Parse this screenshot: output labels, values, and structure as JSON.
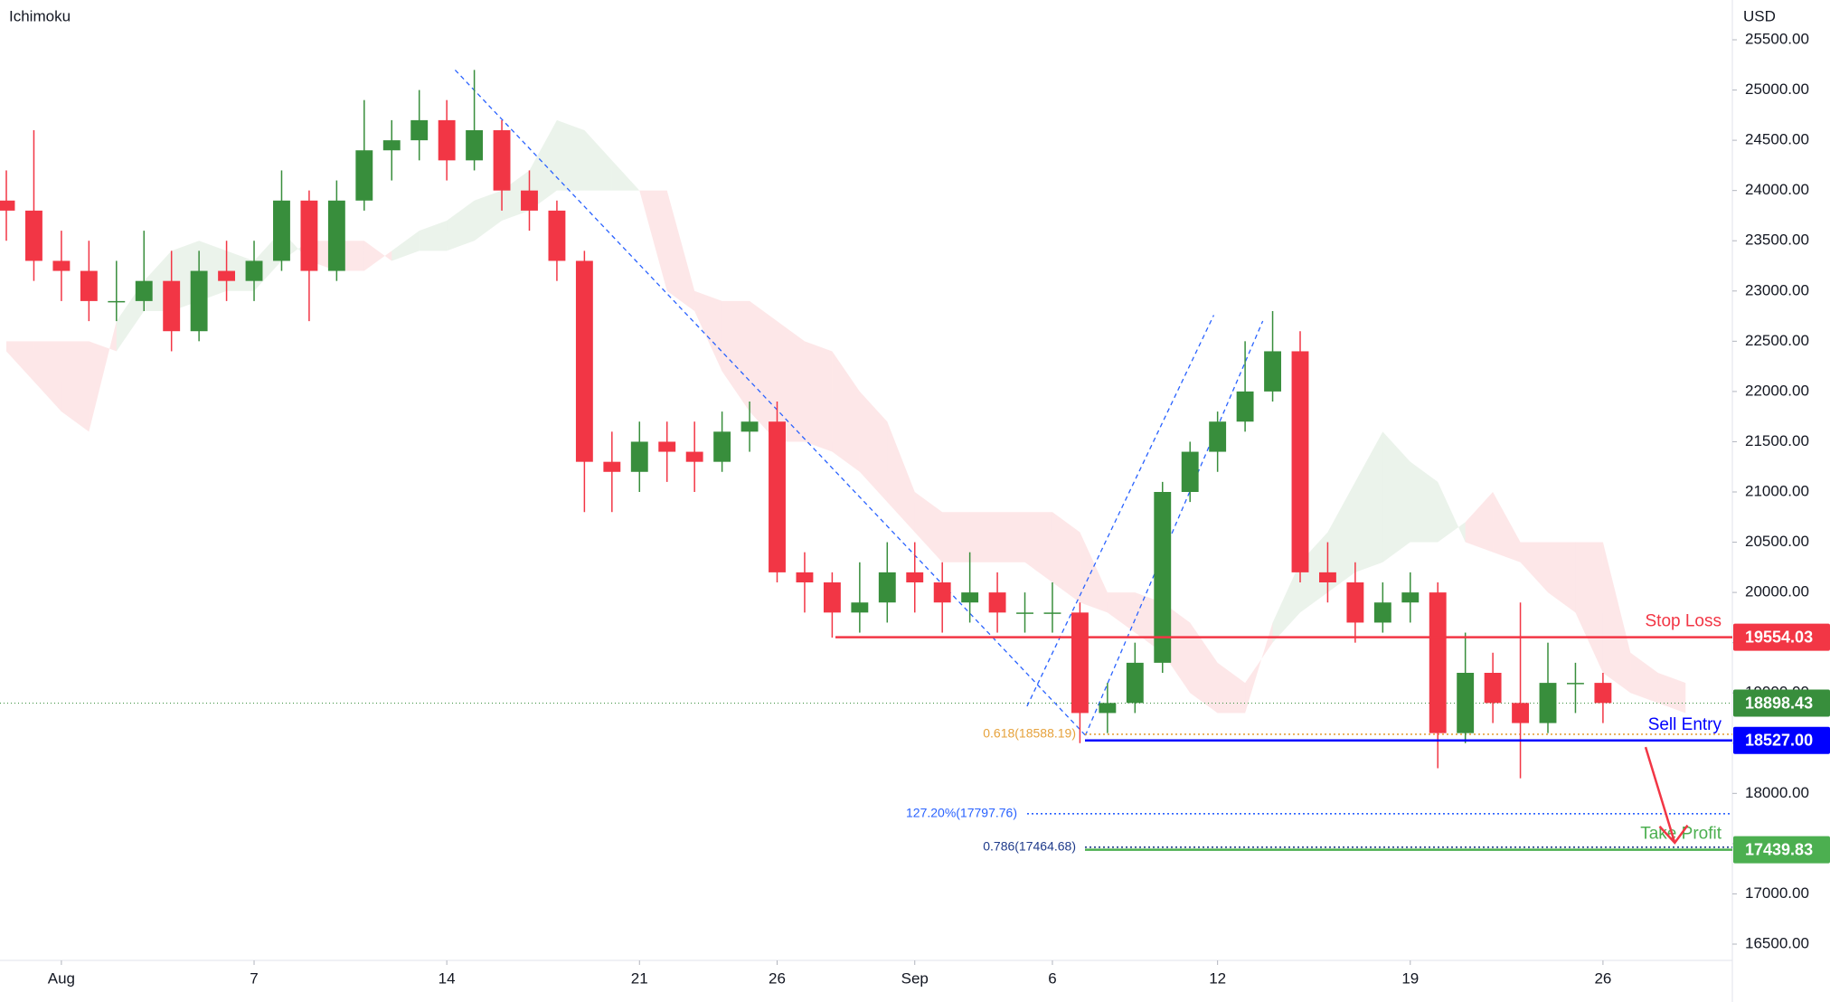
{
  "chart_data": {
    "type": "candlestick",
    "title": "Ichimoku",
    "currency": "USD",
    "x": [
      -2,
      -1,
      0,
      1,
      2,
      3,
      4,
      5,
      6,
      7,
      8,
      9,
      10,
      11,
      12,
      13,
      14,
      15,
      16,
      17,
      18,
      19,
      20,
      21,
      22,
      23,
      24,
      25,
      26,
      27,
      28,
      29,
      30,
      31,
      32,
      33,
      34,
      35,
      36,
      37,
      38,
      39,
      40,
      41,
      42,
      43,
      44,
      45,
      46,
      47,
      48,
      49,
      50,
      51,
      52,
      53,
      54,
      55,
      56
    ],
    "open": [
      23900,
      23800,
      23300,
      23200,
      22900,
      22900,
      23100,
      22600,
      23200,
      23100,
      23300,
      23900,
      23200,
      23900,
      24400,
      24500,
      24700,
      24300,
      24600,
      24000,
      23800,
      23300,
      21300,
      21200,
      21500,
      21400,
      21300,
      21600,
      21700,
      20200,
      20100,
      19800,
      19900,
      20200,
      20100,
      19900,
      20000,
      19800,
      19800,
      19800,
      18800,
      18900,
      19300,
      21000,
      21400,
      21700,
      22000,
      22400,
      20200,
      20100,
      19700,
      19900,
      20000,
      18600,
      19200,
      18900,
      18700,
      19100,
      19100
    ],
    "high": [
      24200,
      24600,
      23600,
      23500,
      23300,
      23600,
      23400,
      23400,
      23500,
      23500,
      24200,
      24000,
      24100,
      24900,
      24700,
      25000,
      24900,
      25200,
      24700,
      24200,
      23900,
      23400,
      21600,
      21700,
      21700,
      21700,
      21800,
      21900,
      21900,
      20400,
      20200,
      20300,
      20500,
      20500,
      20300,
      20400,
      20200,
      20000,
      20100,
      19900,
      19100,
      19500,
      21100,
      21500,
      21800,
      22500,
      22800,
      22600,
      20500,
      20300,
      20100,
      20200,
      20100,
      19600,
      19400,
      19900,
      19500,
      19300,
      19200
    ],
    "low": [
      23500,
      23100,
      22900,
      22700,
      22700,
      22800,
      22400,
      22500,
      22900,
      22900,
      23200,
      22700,
      23100,
      23800,
      24100,
      24300,
      24100,
      24200,
      23800,
      23600,
      23100,
      20800,
      20800,
      21000,
      21100,
      21000,
      21200,
      21400,
      20100,
      19800,
      19550,
      19600,
      19700,
      19800,
      19600,
      19700,
      19600,
      19600,
      19600,
      18500,
      18600,
      18800,
      19200,
      20900,
      21200,
      21600,
      21900,
      20100,
      19900,
      19500,
      19600,
      19700,
      18250,
      18500,
      18700,
      18150,
      18600,
      18800,
      18700
    ],
    "close": [
      23800,
      23300,
      23200,
      22900,
      22900,
      23100,
      22600,
      23200,
      23100,
      23300,
      23900,
      23200,
      23900,
      24400,
      24500,
      24700,
      24300,
      24600,
      24000,
      23800,
      23300,
      21300,
      21200,
      21500,
      21400,
      21300,
      21600,
      21700,
      20200,
      20100,
      19800,
      19900,
      20200,
      20100,
      19900,
      20000,
      19800,
      19800,
      19800,
      18800,
      18900,
      19300,
      21000,
      21400,
      21700,
      22000,
      22400,
      20200,
      20100,
      19700,
      19900,
      20000,
      18600,
      19200,
      18900,
      18700,
      19100,
      19100,
      18900
    ],
    "up_color": "#388e3c",
    "down_color": "#f23645",
    "cloud": {
      "x": [
        -2,
        -1,
        0,
        1,
        2,
        3,
        4,
        5,
        6,
        7,
        8,
        9,
        10,
        11,
        12,
        13,
        14,
        15,
        16,
        17,
        18,
        19,
        20,
        21,
        22,
        23,
        24,
        25,
        26,
        27,
        28,
        29,
        30,
        31,
        32,
        33,
        34,
        35,
        36,
        37,
        38,
        39,
        40,
        41,
        42,
        43,
        44,
        45,
        46,
        47,
        48,
        49,
        50,
        51,
        52,
        53,
        54,
        55,
        56,
        57,
        58,
        59
      ],
      "span_a": [
        22400,
        22100,
        21800,
        21600,
        22700,
        23100,
        23400,
        23500,
        23400,
        23300,
        23600,
        23300,
        23200,
        23200,
        23400,
        23600,
        23700,
        23900,
        24000,
        24200,
        24700,
        24600,
        24300,
        24000,
        23000,
        22800,
        22200,
        21800,
        21500,
        21500,
        21400,
        21200,
        20900,
        20600,
        20300,
        20300,
        20300,
        20300,
        20100,
        19900,
        19800,
        19600,
        19400,
        19000,
        18800,
        18800,
        19700,
        20300,
        20600,
        21100,
        21600,
        21300,
        21100,
        20500,
        20400,
        20300,
        20000,
        19800,
        19200,
        19000,
        18900,
        18800
      ],
      "span_b": [
        22500,
        22500,
        22500,
        22500,
        22400,
        22800,
        22800,
        22900,
        23000,
        23000,
        23300,
        23500,
        23500,
        23500,
        23300,
        23400,
        23400,
        23500,
        23700,
        23800,
        24000,
        24000,
        24000,
        24000,
        24000,
        23000,
        22900,
        22900,
        22700,
        22500,
        22400,
        22000,
        21700,
        21000,
        20800,
        20800,
        20800,
        20800,
        20800,
        20600,
        20000,
        20000,
        19900,
        19700,
        19300,
        19100,
        19500,
        19800,
        20000,
        20200,
        20300,
        20500,
        20500,
        20700,
        21000,
        20500,
        20500,
        20500,
        20500,
        19400,
        19200,
        19100
      ],
      "up_color": "rgba(56,142,60,0.10)",
      "down_color": "rgba(242,54,69,0.12)"
    },
    "xlim": [
      -2.23,
      60.7
    ],
    "xticks": [
      {
        "value": 0,
        "label": "Aug"
      },
      7,
      14,
      21,
      26,
      {
        "value": 31,
        "label": "Sep"
      },
      {
        "value": 36,
        "label": "6"
      },
      {
        "value": 42,
        "label": "12"
      },
      {
        "value": 49,
        "label": "19"
      },
      {
        "value": 56,
        "label": "26"
      }
    ],
    "ylim": [
      16338,
      25896
    ],
    "yticks": [
      {
        "value": 16500,
        "label": "16500.00"
      },
      {
        "value": 17000,
        "label": "17000.00"
      },
      {
        "value": 17500,
        "label": "17500.00"
      },
      {
        "value": 18000,
        "label": "18000.00"
      },
      {
        "value": 18500,
        "label": "18500.00"
      },
      {
        "value": 19000,
        "label": "19000.00"
      },
      {
        "value": 19500,
        "label": "19500.00"
      },
      {
        "value": 20000,
        "label": "20000.00"
      },
      {
        "value": 20500,
        "label": "20500.00"
      },
      {
        "value": 21000,
        "label": "21000.00"
      },
      {
        "value": 21500,
        "label": "21500.00"
      },
      {
        "value": 22000,
        "label": "22000.00"
      },
      {
        "value": 22500,
        "label": "22500.00"
      },
      {
        "value": 23000,
        "label": "23000.00"
      },
      {
        "value": 23500,
        "label": "23500.00"
      },
      {
        "value": 24000,
        "label": "24000.00"
      },
      {
        "value": 24500,
        "label": "24500.00"
      },
      {
        "value": 25000,
        "label": "25000.00"
      },
      {
        "value": 25500,
        "label": "25500.00"
      }
    ],
    "current_price": {
      "value": 18898.43,
      "label": "18898.43",
      "color": "#388e3c"
    },
    "levels": [
      {
        "name": "Stop Loss",
        "value": 19554.03,
        "label": "19554.03",
        "color": "#f23645"
      },
      {
        "name": "Sell Entry",
        "value": 18527,
        "label": "18527.00",
        "color": "#0000ff"
      },
      {
        "name": "Take Profit",
        "value": 17439.83,
        "label": "17439.83",
        "color": "#4caf50"
      }
    ],
    "fib_levels": [
      {
        "value": 18588.19,
        "label": "0.618(18588.19)",
        "color": "#e6a23c"
      },
      {
        "value": 17797.76,
        "label": "127.20%(17797.76)",
        "color": "#2962ff"
      },
      {
        "value": 17464.68,
        "label": "0.786(17464.68)",
        "color": "#1e3a8a"
      }
    ]
  }
}
